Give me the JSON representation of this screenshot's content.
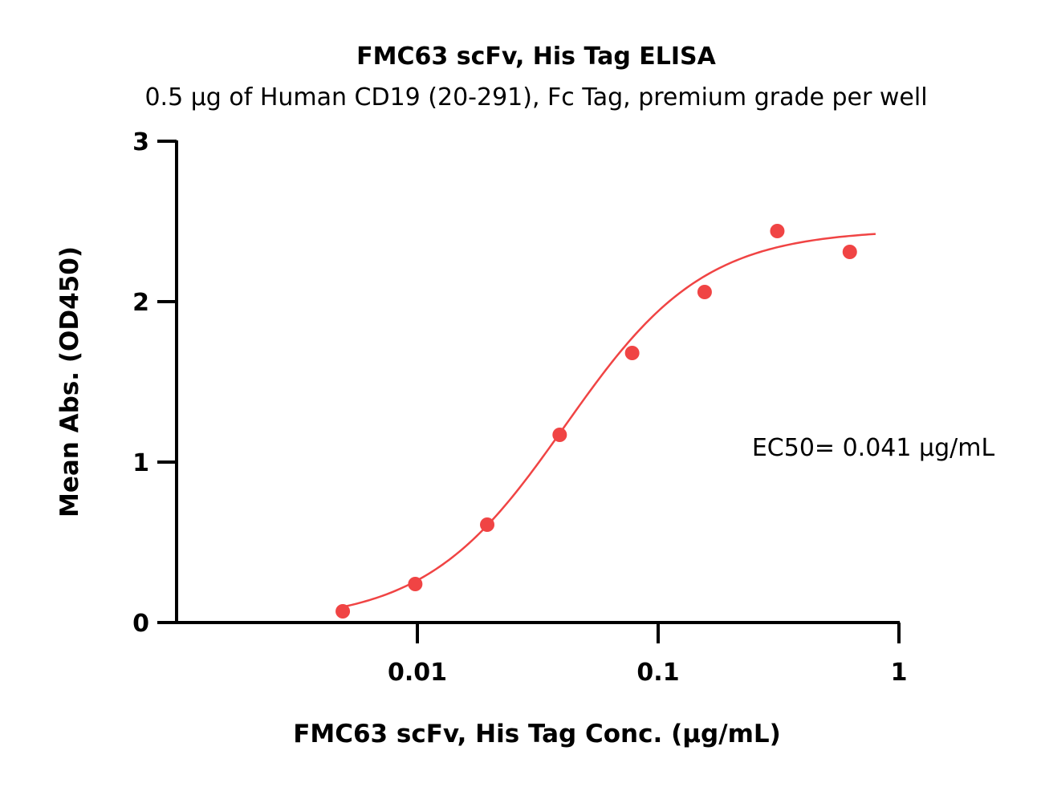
{
  "chart_data": {
    "type": "scatter",
    "title": "FMC63 scFv, His Tag ELISA",
    "subtitle": "0.5 µg of Human CD19 (20-291), Fc Tag, premium grade per well",
    "xlabel": "FMC63 scFv, His Tag Conc. (µg/mL)",
    "ylabel": "Mean Abs. (OD450)",
    "xscale": "log",
    "xlim": [
      0.001,
      1
    ],
    "ylim": [
      0,
      3
    ],
    "x_ticks": [
      {
        "value": 0.01,
        "label": "0.01"
      },
      {
        "value": 0.1,
        "label": "0.1"
      },
      {
        "value": 1,
        "label": "1"
      }
    ],
    "y_ticks": [
      {
        "value": 0,
        "label": "0"
      },
      {
        "value": 1,
        "label": "1"
      },
      {
        "value": 2,
        "label": "2"
      },
      {
        "value": 3,
        "label": "3"
      }
    ],
    "series": [
      {
        "x": [
          0.0049,
          0.0098,
          0.0195,
          0.039,
          0.078,
          0.156,
          0.3125,
          0.625
        ],
        "y": [
          0.07,
          0.24,
          0.61,
          1.17,
          1.68,
          2.06,
          2.44,
          2.31
        ],
        "color": "#f04444",
        "fit": "4PL"
      }
    ],
    "fit_curve": {
      "model": "4PL",
      "bottom": 0.0,
      "top": 2.45,
      "ec50": 0.041,
      "hill": 1.5,
      "x_range": [
        0.0049,
        0.8
      ]
    },
    "annotations": [
      {
        "text": "EC50= 0.041 µg/mL"
      }
    ],
    "grid": false,
    "legend": "none"
  }
}
